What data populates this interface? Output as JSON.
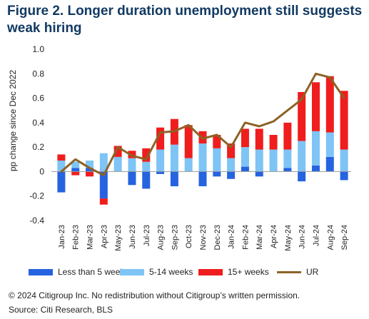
{
  "title_line1": "Figure 2. Longer duration unemployment still suggests",
  "title_line2": "weak hiring",
  "copyright": "© 2024 Citigroup Inc. No redistribution without Citigroup’s written permission.",
  "source": "Source: Citi Research, BLS",
  "colors": {
    "lt5": "#2563e0",
    "w5_14": "#7ec4f5",
    "w15": "#ef1d1d",
    "ur": "#8c6326"
  },
  "chart_data": {
    "type": "bar",
    "stacked": true,
    "title": "Figure 2. Longer duration unemployment still suggests weak hiring",
    "ylabel": "pp change since Dec 2022",
    "xlabel": "",
    "ylim": [
      -0.4,
      1.0
    ],
    "yticks": [
      "1.0",
      "0.8",
      "0.6",
      "0.4",
      "0.2",
      "0",
      "-0.2",
      "-0.4"
    ],
    "grid": false,
    "legend_position": "bottom",
    "categories": [
      "Jan-23",
      "Feb-23",
      "Mar-23",
      "Apr-23",
      "May-23",
      "Jun-23",
      "Jul-23",
      "Aug-23",
      "Sep-23",
      "Oct-23",
      "Nov-23",
      "Dec-23",
      "Jan-24",
      "Feb-24",
      "Mar-24",
      "Apr-24",
      "May-24",
      "Jun-24",
      "Jul-24",
      "Aug-24",
      "Sep-24"
    ],
    "series": [
      {
        "name": "Less than 5 weeks",
        "kind": "bar",
        "values": [
          -0.17,
          0.03,
          0.03,
          -0.22,
          0.0,
          -0.11,
          -0.14,
          -0.02,
          -0.12,
          0.0,
          -0.12,
          -0.04,
          -0.06,
          0.04,
          -0.04,
          0.0,
          0.03,
          -0.08,
          0.05,
          0.12,
          -0.07
        ]
      },
      {
        "name": "5-14 weeks",
        "kind": "bar",
        "values": [
          0.09,
          0.05,
          0.06,
          0.15,
          0.12,
          0.11,
          0.08,
          0.18,
          0.22,
          0.11,
          0.23,
          0.19,
          0.11,
          0.16,
          0.18,
          0.18,
          0.15,
          0.25,
          0.28,
          0.2,
          0.18
        ]
      },
      {
        "name": "15+ weeks",
        "kind": "bar",
        "values": [
          0.05,
          -0.03,
          -0.04,
          -0.05,
          0.09,
          0.06,
          0.11,
          0.18,
          0.21,
          0.27,
          0.1,
          0.11,
          0.12,
          0.15,
          0.17,
          0.12,
          0.22,
          0.4,
          0.4,
          0.46,
          0.48
        ]
      },
      {
        "name": "UR",
        "kind": "line",
        "values": [
          -0.0,
          0.1,
          0.03,
          -0.03,
          0.2,
          0.13,
          0.1,
          0.32,
          0.33,
          0.38,
          0.27,
          0.3,
          0.2,
          0.4,
          0.37,
          0.41,
          0.5,
          0.59,
          0.8,
          0.77,
          0.6
        ]
      }
    ]
  }
}
